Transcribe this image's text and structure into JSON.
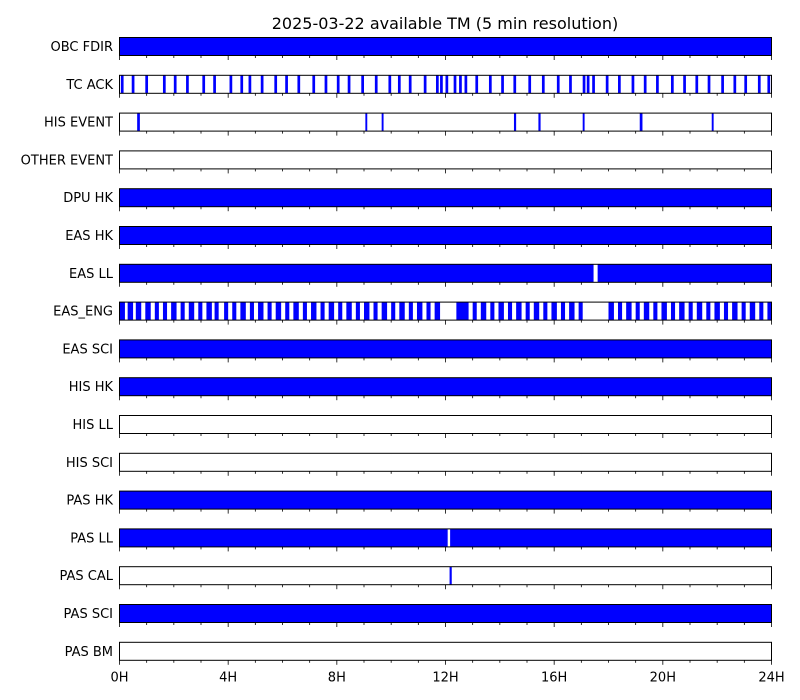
{
  "chart_data": {
    "type": "timeline",
    "title": "2025-03-22 available TM (5 min resolution)",
    "x_range_hours": [
      0,
      24
    ],
    "x_ticks": [
      "0H",
      "4H",
      "8H",
      "12H",
      "16H",
      "20H",
      "24H"
    ],
    "fill_color": "#0000ff",
    "rows": [
      {
        "label": "OBC FDIR",
        "intervals": [
          [
            0,
            24
          ]
        ]
      },
      {
        "label": "TC ACK",
        "intervals": [
          [
            0.05,
            0.15
          ],
          [
            0.45,
            0.55
          ],
          [
            0.95,
            1.05
          ],
          [
            1.6,
            1.7
          ],
          [
            2.0,
            2.1
          ],
          [
            2.45,
            2.55
          ],
          [
            3.05,
            3.15
          ],
          [
            3.45,
            3.55
          ],
          [
            4.05,
            4.15
          ],
          [
            4.45,
            4.55
          ],
          [
            4.75,
            4.85
          ],
          [
            5.2,
            5.3
          ],
          [
            5.7,
            5.8
          ],
          [
            6.1,
            6.2
          ],
          [
            6.55,
            6.65
          ],
          [
            7.1,
            7.2
          ],
          [
            7.55,
            7.65
          ],
          [
            8.0,
            8.1
          ],
          [
            8.4,
            8.5
          ],
          [
            8.9,
            9.0
          ],
          [
            9.4,
            9.5
          ],
          [
            9.9,
            10.0
          ],
          [
            10.25,
            10.35
          ],
          [
            10.65,
            10.75
          ],
          [
            11.2,
            11.3
          ],
          [
            11.65,
            11.75
          ],
          [
            11.8,
            11.9
          ],
          [
            12.0,
            12.1
          ],
          [
            12.3,
            12.4
          ],
          [
            12.5,
            12.6
          ],
          [
            12.7,
            12.8
          ],
          [
            13.1,
            13.2
          ],
          [
            13.6,
            13.7
          ],
          [
            14.05,
            14.15
          ],
          [
            14.5,
            14.6
          ],
          [
            15.05,
            15.15
          ],
          [
            15.55,
            15.65
          ],
          [
            16.1,
            16.2
          ],
          [
            16.55,
            16.65
          ],
          [
            17.05,
            17.15
          ],
          [
            17.2,
            17.3
          ],
          [
            17.4,
            17.5
          ],
          [
            17.9,
            18.0
          ],
          [
            18.35,
            18.45
          ],
          [
            18.85,
            18.95
          ],
          [
            19.3,
            19.4
          ],
          [
            19.75,
            19.85
          ],
          [
            20.3,
            20.4
          ],
          [
            20.75,
            20.85
          ],
          [
            21.2,
            21.3
          ],
          [
            21.65,
            21.75
          ],
          [
            22.15,
            22.25
          ],
          [
            22.6,
            22.7
          ],
          [
            23.0,
            23.1
          ],
          [
            23.5,
            23.6
          ],
          [
            23.85,
            23.95
          ]
        ]
      },
      {
        "label": "HIS EVENT",
        "intervals": [
          [
            0.65,
            0.75
          ],
          [
            9.05,
            9.12
          ],
          [
            9.65,
            9.72
          ],
          [
            14.52,
            14.6
          ],
          [
            15.42,
            15.5
          ],
          [
            17.05,
            17.12
          ],
          [
            19.15,
            19.25
          ],
          [
            21.8,
            21.87
          ]
        ]
      },
      {
        "label": "OTHER EVENT",
        "intervals": []
      },
      {
        "label": "DPU HK",
        "intervals": [
          [
            0,
            24
          ]
        ]
      },
      {
        "label": "EAS HK",
        "intervals": [
          [
            0,
            24
          ]
        ]
      },
      {
        "label": "EAS LL",
        "intervals": [
          [
            0,
            17.45
          ],
          [
            17.6,
            24
          ]
        ]
      },
      {
        "label": "EAS_ENG",
        "intervals": [
          [
            0.0,
            0.2
          ],
          [
            0.3,
            0.5
          ],
          [
            0.6,
            0.8
          ],
          [
            0.95,
            1.15
          ],
          [
            1.3,
            1.45
          ],
          [
            1.6,
            1.75
          ],
          [
            1.9,
            2.1
          ],
          [
            2.25,
            2.4
          ],
          [
            2.55,
            2.75
          ],
          [
            2.9,
            3.05
          ],
          [
            3.2,
            3.4
          ],
          [
            3.5,
            3.65
          ],
          [
            3.85,
            4.0
          ],
          [
            4.15,
            4.3
          ],
          [
            4.45,
            4.65
          ],
          [
            4.8,
            4.95
          ],
          [
            5.1,
            5.3
          ],
          [
            5.45,
            5.6
          ],
          [
            5.75,
            5.95
          ],
          [
            6.1,
            6.25
          ],
          [
            6.4,
            6.6
          ],
          [
            6.75,
            6.9
          ],
          [
            7.05,
            7.25
          ],
          [
            7.4,
            7.55
          ],
          [
            7.7,
            7.9
          ],
          [
            8.05,
            8.2
          ],
          [
            8.35,
            8.55
          ],
          [
            8.7,
            8.85
          ],
          [
            9.0,
            9.2
          ],
          [
            9.35,
            9.5
          ],
          [
            9.65,
            9.85
          ],
          [
            10.0,
            10.15
          ],
          [
            10.3,
            10.5
          ],
          [
            10.65,
            10.8
          ],
          [
            10.95,
            11.15
          ],
          [
            11.3,
            11.45
          ],
          [
            11.6,
            11.8
          ],
          [
            12.4,
            12.85
          ],
          [
            13.0,
            13.15
          ],
          [
            13.3,
            13.5
          ],
          [
            13.65,
            13.8
          ],
          [
            13.95,
            14.15
          ],
          [
            14.3,
            14.45
          ],
          [
            14.6,
            14.8
          ],
          [
            14.95,
            15.1
          ],
          [
            15.25,
            15.45
          ],
          [
            15.6,
            15.75
          ],
          [
            15.9,
            16.1
          ],
          [
            16.25,
            16.4
          ],
          [
            16.55,
            16.75
          ],
          [
            16.9,
            17.05
          ],
          [
            18.0,
            18.2
          ],
          [
            18.35,
            18.5
          ],
          [
            18.65,
            18.85
          ],
          [
            19.0,
            19.15
          ],
          [
            19.3,
            19.5
          ],
          [
            19.65,
            19.8
          ],
          [
            19.95,
            20.15
          ],
          [
            20.3,
            20.45
          ],
          [
            20.6,
            20.8
          ],
          [
            20.95,
            21.1
          ],
          [
            21.25,
            21.45
          ],
          [
            21.6,
            21.75
          ],
          [
            21.9,
            22.1
          ],
          [
            22.25,
            22.4
          ],
          [
            22.55,
            22.75
          ],
          [
            22.9,
            23.05
          ],
          [
            23.2,
            23.4
          ],
          [
            23.55,
            23.7
          ],
          [
            23.85,
            24.0
          ]
        ]
      },
      {
        "label": "EAS SCI",
        "intervals": [
          [
            0,
            24
          ]
        ]
      },
      {
        "label": "HIS HK",
        "intervals": [
          [
            0,
            24
          ]
        ]
      },
      {
        "label": "HIS LL",
        "intervals": []
      },
      {
        "label": "HIS SCI",
        "intervals": []
      },
      {
        "label": "PAS HK",
        "intervals": [
          [
            0,
            24
          ]
        ]
      },
      {
        "label": "PAS LL",
        "intervals": [
          [
            0,
            12.08
          ],
          [
            12.17,
            24
          ]
        ]
      },
      {
        "label": "PAS CAL",
        "intervals": [
          [
            12.15,
            12.23
          ]
        ]
      },
      {
        "label": "PAS SCI",
        "intervals": [
          [
            0,
            24
          ]
        ]
      },
      {
        "label": "PAS BM",
        "intervals": []
      }
    ]
  }
}
